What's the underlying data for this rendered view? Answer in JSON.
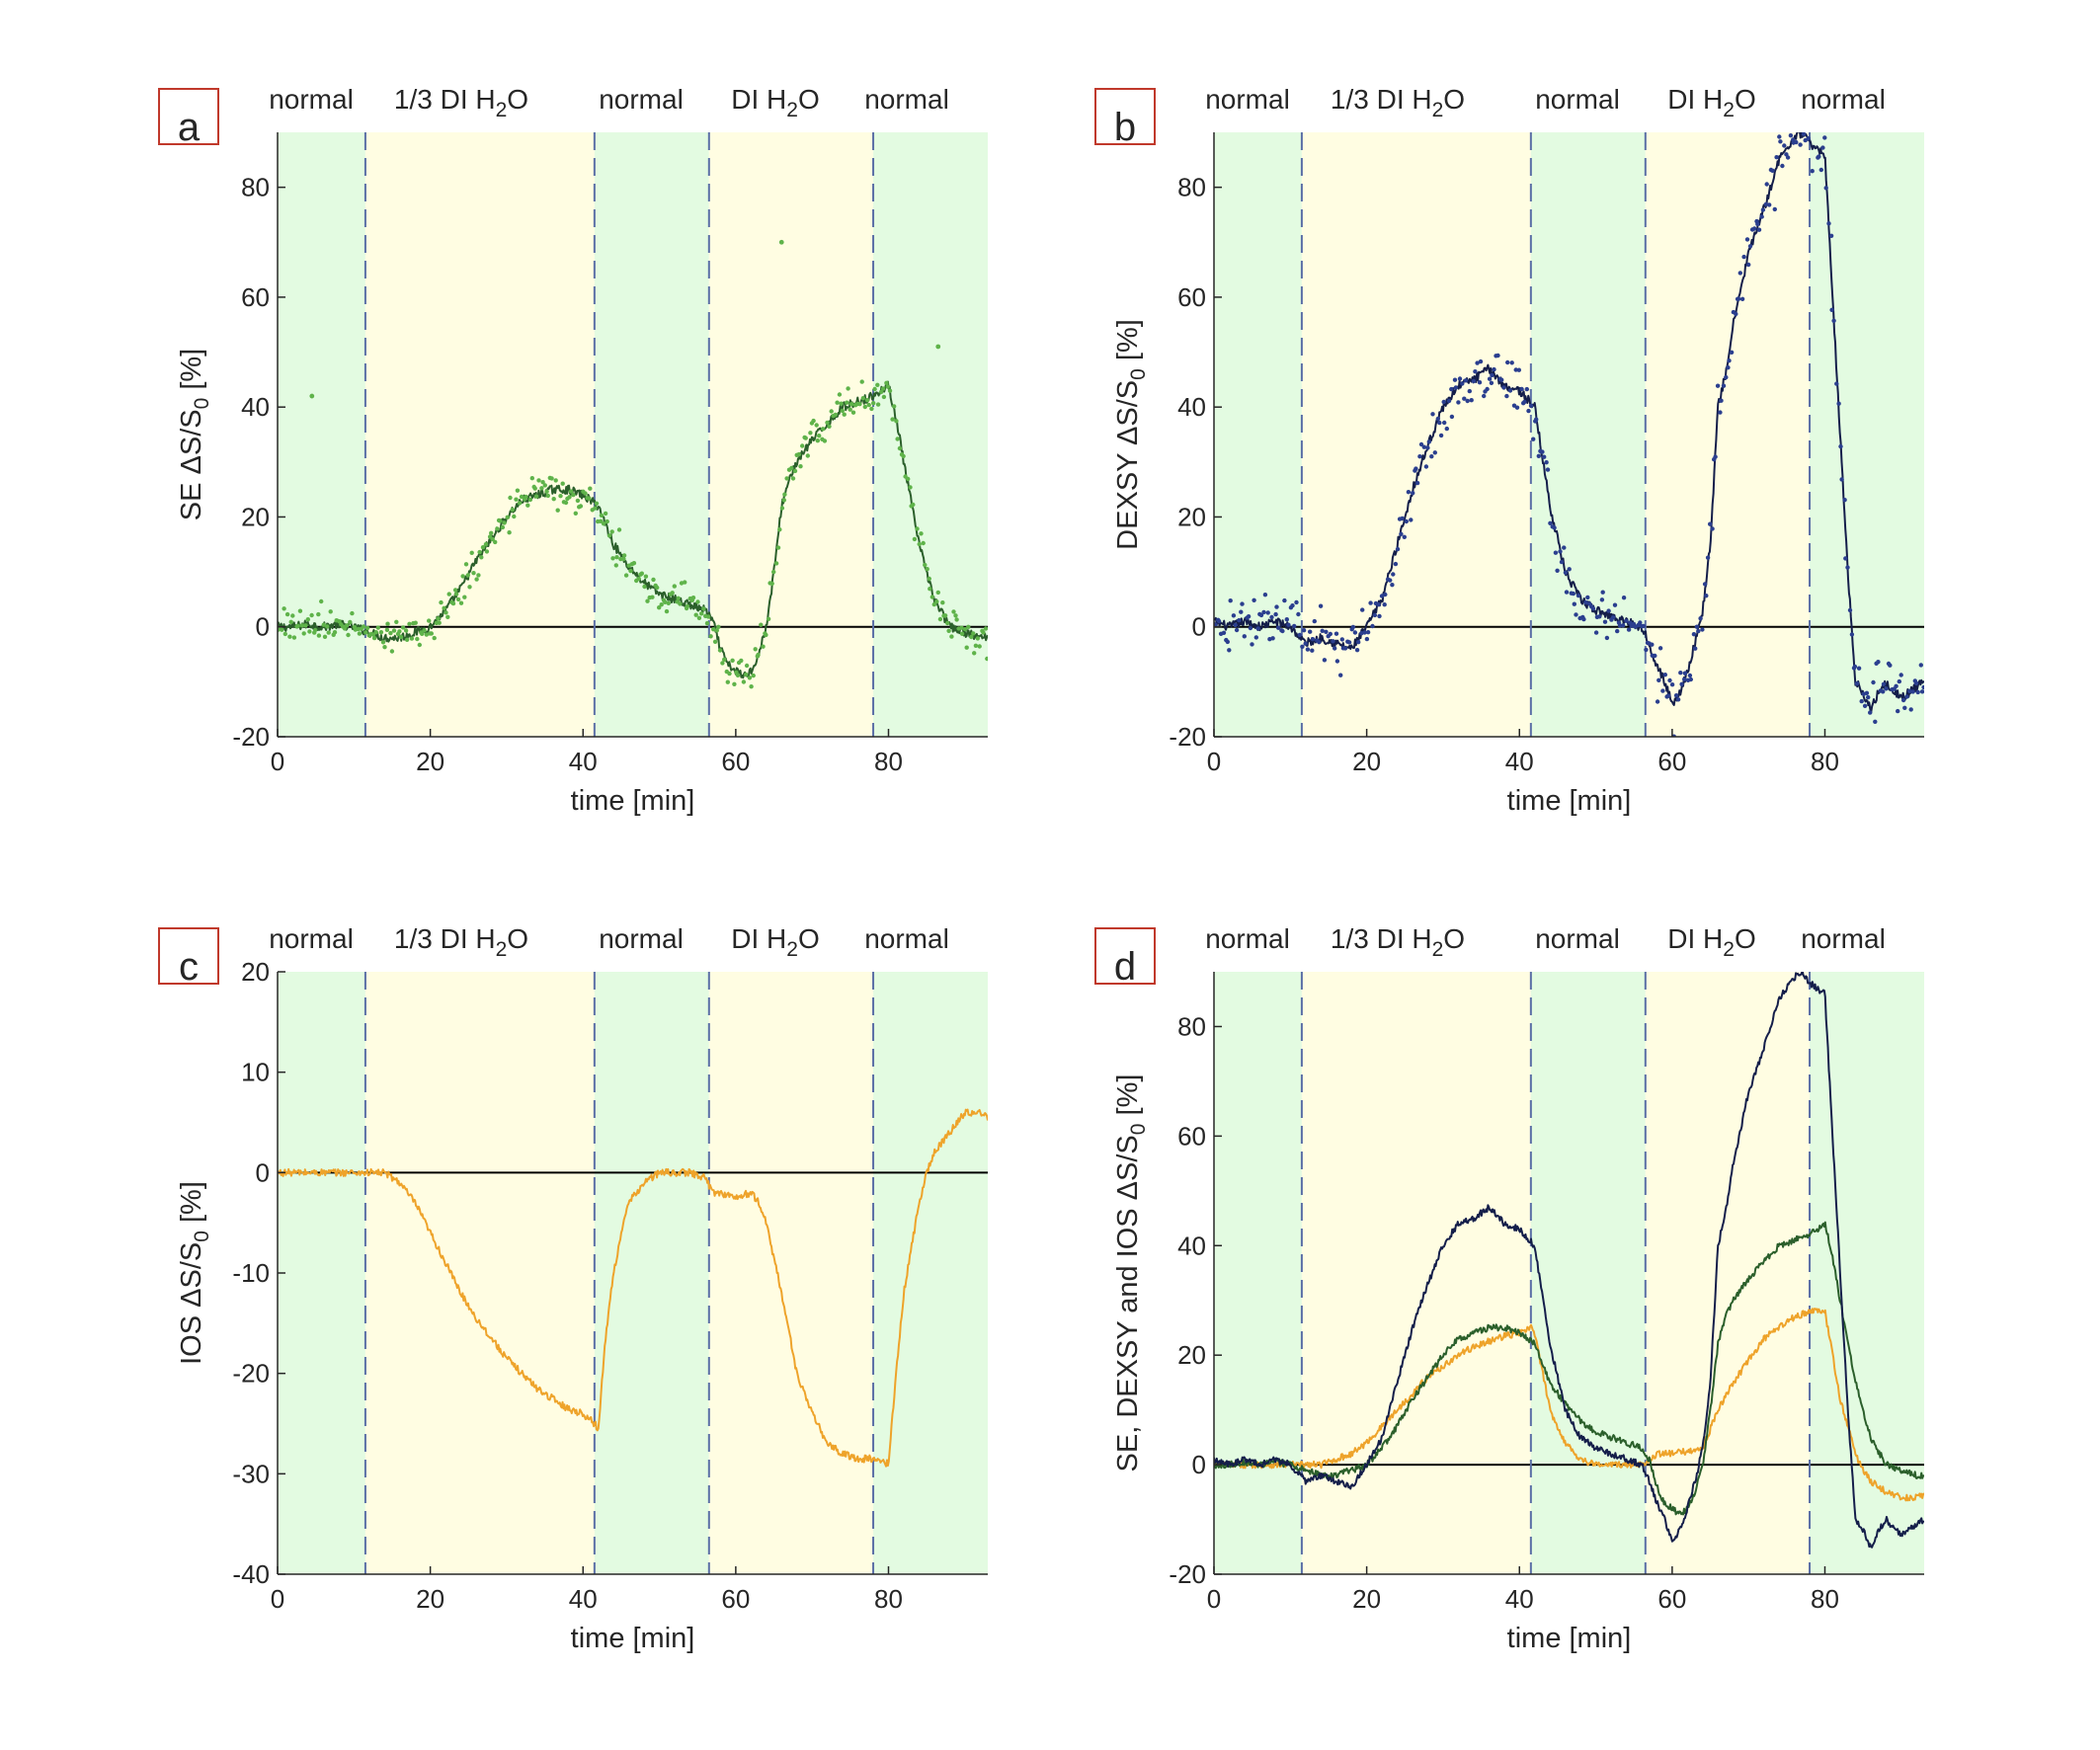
{
  "figure": {
    "x_tick_labels": [
      "0",
      "20",
      "40",
      "60",
      "80"
    ],
    "phase_label_parts": [
      [
        "normal"
      ],
      [
        "1/3 DI H",
        "2",
        "O"
      ],
      [
        "normal"
      ],
      [
        "DI H",
        "2",
        "O"
      ],
      [
        "normal"
      ]
    ]
  },
  "colors": {
    "green_band": "#e3fbe1",
    "yellow_band": "#fffde2",
    "divider": "#5b6fa6",
    "zero_line": "#000000",
    "se_line": "#2b5f2b",
    "se_dots": "#5fb34a",
    "dexsy_line": "#141e4a",
    "dexsy_dots": "#2b3f8f",
    "ios_line": "#eea32a",
    "panel_label_border": "#c0392b"
  },
  "chart_data": [
    {
      "type": "line",
      "panel_label": "a",
      "title": "",
      "xlabel": "time [min]",
      "ylabel_prefix": "SE ΔS/S",
      "ylabel_sub": "0",
      "ylabel_suffix": " [%]",
      "xlim": [
        0,
        93
      ],
      "ylim": [
        -20,
        90
      ],
      "yticks": [
        -20,
        0,
        20,
        40,
        60,
        80
      ],
      "ytick_labels": [
        "-20",
        "0",
        "20",
        "40",
        "60",
        "80"
      ],
      "phases": [
        {
          "label": "normal",
          "start": 0,
          "end": 11.5,
          "band": "green"
        },
        {
          "label": "1/3 DI H2O",
          "start": 11.5,
          "end": 41.5,
          "band": "yellow"
        },
        {
          "label": "normal",
          "start": 41.5,
          "end": 56.5,
          "band": "green"
        },
        {
          "label": "DI H2O",
          "start": 56.5,
          "end": 78,
          "band": "yellow"
        },
        {
          "label": "normal",
          "start": 78,
          "end": 93,
          "band": "green"
        }
      ],
      "series": [
        {
          "name": "SE",
          "color_key": "se_line",
          "dots": true,
          "dot_color_key": "se_dots",
          "noise": 3.0,
          "x": [
            0,
            2,
            4,
            6,
            8,
            10,
            12,
            14,
            16,
            18,
            20,
            22,
            24,
            26,
            28,
            30,
            32,
            34,
            36,
            38,
            40,
            42,
            44,
            46,
            48,
            50,
            52,
            54,
            56,
            57,
            58,
            59,
            60,
            61,
            62,
            63,
            64,
            65,
            66,
            67,
            68,
            70,
            72,
            74,
            76,
            78,
            79,
            80,
            81,
            82,
            84,
            86,
            88,
            90,
            92,
            93
          ],
          "y": [
            0,
            0,
            0.5,
            0,
            0.5,
            0,
            -1,
            -2,
            -2,
            -1,
            0,
            3,
            7,
            12,
            16,
            20,
            23,
            24,
            25,
            25,
            24,
            22,
            15,
            11,
            8,
            6,
            5,
            4,
            3,
            1,
            -4,
            -7,
            -8,
            -9,
            -8,
            -5,
            0,
            10,
            22,
            27,
            30,
            34,
            37,
            40,
            41,
            42,
            43,
            44,
            38,
            30,
            15,
            5,
            0,
            -1,
            -2,
            -2
          ]
        },
        {
          "name": "outliers",
          "color_key": "se_dots",
          "outliers": true,
          "x": [
            4.5,
            66,
            86.5
          ],
          "y": [
            42,
            70,
            51
          ]
        }
      ]
    },
    {
      "type": "line",
      "panel_label": "b",
      "title": "",
      "xlabel": "time [min]",
      "ylabel_prefix": "DEXSY  ΔS/S",
      "ylabel_sub": "0",
      "ylabel_suffix": " [%]",
      "xlim": [
        0,
        93
      ],
      "ylim": [
        -20,
        90
      ],
      "yticks": [
        -20,
        0,
        20,
        40,
        60,
        80
      ],
      "ytick_labels": [
        "-20",
        "0",
        "20",
        "40",
        "60",
        "80"
      ],
      "phases": [
        {
          "label": "normal",
          "start": 0,
          "end": 11.5,
          "band": "green"
        },
        {
          "label": "1/3 DI H2O",
          "start": 11.5,
          "end": 41.5,
          "band": "yellow"
        },
        {
          "label": "normal",
          "start": 41.5,
          "end": 56.5,
          "band": "green"
        },
        {
          "label": "DI H2O",
          "start": 56.5,
          "end": 78,
          "band": "yellow"
        },
        {
          "label": "normal",
          "start": 78,
          "end": 93,
          "band": "green"
        }
      ],
      "series": [
        {
          "name": "DEXSY",
          "color_key": "dexsy_line",
          "dots": true,
          "dot_color_key": "dexsy_dots",
          "noise": 5.0,
          "x": [
            0,
            2,
            4,
            6,
            8,
            10,
            12,
            14,
            16,
            18,
            20,
            22,
            24,
            26,
            28,
            30,
            32,
            34,
            36,
            38,
            40,
            42,
            44,
            46,
            48,
            50,
            52,
            54,
            56,
            57,
            58,
            59,
            60,
            61,
            62,
            63,
            64,
            65,
            66,
            67,
            68,
            70,
            72,
            74,
            76,
            77,
            78,
            79,
            80,
            81,
            82,
            83,
            84,
            85,
            86,
            87,
            88,
            90,
            92,
            93
          ],
          "y": [
            1,
            0,
            1,
            0,
            1,
            0,
            -3,
            -2,
            -3,
            -4,
            0,
            5,
            15,
            25,
            33,
            40,
            44,
            45,
            47,
            44,
            43,
            40,
            22,
            10,
            5,
            3,
            2,
            1,
            0,
            -3,
            -7,
            -10,
            -14,
            -12,
            -8,
            -3,
            3,
            15,
            40,
            46,
            55,
            68,
            76,
            85,
            89,
            90,
            88,
            87,
            86,
            60,
            35,
            10,
            -10,
            -12,
            -15,
            -12,
            -10,
            -13,
            -11,
            -10
          ]
        }
      ]
    },
    {
      "type": "line",
      "panel_label": "c",
      "title": "",
      "xlabel": "time [min]",
      "ylabel_prefix": "IOS  ΔS/S",
      "ylabel_sub": "0",
      "ylabel_suffix": " [%]",
      "xlim": [
        0,
        93
      ],
      "ylim": [
        -40,
        20
      ],
      "yticks": [
        -40,
        -30,
        -20,
        -10,
        0,
        10,
        20
      ],
      "ytick_labels": [
        "-40",
        "-30",
        "-20",
        "-10",
        "0",
        "10",
        "20"
      ],
      "phases": [
        {
          "label": "normal",
          "start": 0,
          "end": 11.5,
          "band": "green"
        },
        {
          "label": "1/3 DI H2O",
          "start": 11.5,
          "end": 41.5,
          "band": "yellow"
        },
        {
          "label": "normal",
          "start": 41.5,
          "end": 56.5,
          "band": "green"
        },
        {
          "label": "DI H2O",
          "start": 56.5,
          "end": 78,
          "band": "yellow"
        },
        {
          "label": "normal",
          "start": 78,
          "end": 93,
          "band": "green"
        }
      ],
      "series": [
        {
          "name": "IOS",
          "color_key": "ios_line",
          "dots": false,
          "jitter": 0.35,
          "x": [
            0,
            5,
            10,
            14,
            16,
            18,
            20,
            22,
            24,
            26,
            28,
            30,
            32,
            34,
            36,
            38,
            40,
            41.5,
            42,
            43,
            44,
            45,
            46,
            48,
            50,
            52,
            54,
            56,
            57,
            58,
            60,
            62,
            63,
            64,
            66,
            68,
            70,
            72,
            74,
            76,
            78,
            80,
            81,
            82,
            84,
            85,
            86,
            88,
            90,
            92,
            93
          ],
          "y": [
            0,
            0,
            0,
            0,
            -1,
            -3,
            -6,
            -9,
            -12,
            -14.5,
            -16.5,
            -18.5,
            -20,
            -21.5,
            -22.5,
            -23.5,
            -24,
            -25,
            -25.5,
            -16,
            -10,
            -6,
            -3,
            -1,
            0,
            0,
            0,
            -0.5,
            -2,
            -2,
            -2.5,
            -2,
            -3,
            -5,
            -12,
            -20,
            -24,
            -27,
            -28,
            -28.5,
            -28.5,
            -29,
            -20,
            -12,
            -3,
            0,
            2,
            4,
            6,
            6,
            5.5
          ]
        }
      ]
    },
    {
      "type": "line",
      "panel_label": "d",
      "title": "",
      "xlabel": "time [min]",
      "ylabel_prefix": "SE, DEXSY and IOS  ΔS/S",
      "ylabel_sub": "0",
      "ylabel_suffix": " [%]",
      "xlim": [
        0,
        93
      ],
      "ylim": [
        -20,
        90
      ],
      "yticks": [
        -20,
        0,
        20,
        40,
        60,
        80
      ],
      "ytick_labels": [
        "-20",
        "0",
        "20",
        "40",
        "60",
        "80"
      ],
      "phases": [
        {
          "label": "normal",
          "start": 0,
          "end": 11.5,
          "band": "green"
        },
        {
          "label": "1/3 DI H2O",
          "start": 11.5,
          "end": 41.5,
          "band": "yellow"
        },
        {
          "label": "normal",
          "start": 41.5,
          "end": 56.5,
          "band": "green"
        },
        {
          "label": "DI H2O",
          "start": 56.5,
          "end": 78,
          "band": "yellow"
        },
        {
          "label": "normal",
          "start": 78,
          "end": 93,
          "band": "green"
        }
      ],
      "series": [
        {
          "name": "IOS",
          "color_key": "ios_line",
          "dots": false,
          "jitter": 0.6,
          "x": [
            0,
            5,
            10,
            14,
            16,
            18,
            20,
            22,
            24,
            26,
            28,
            30,
            32,
            34,
            36,
            38,
            40,
            41.5,
            42,
            44,
            46,
            48,
            50,
            52,
            54,
            56,
            57,
            58,
            60,
            62,
            64,
            66,
            68,
            70,
            72,
            74,
            76,
            78,
            79,
            80,
            81,
            82,
            84,
            85,
            86,
            88,
            90,
            92,
            93
          ],
          "y": [
            0,
            0,
            0,
            0,
            1,
            2,
            4,
            7,
            10,
            13,
            16,
            18,
            20,
            21.5,
            22.5,
            23.5,
            24,
            25,
            24,
            10,
            4,
            1,
            0,
            0,
            0,
            0,
            1,
            2,
            2,
            2.5,
            3,
            10,
            15,
            19,
            23,
            25,
            27,
            28,
            28,
            28,
            20,
            12,
            2,
            -1,
            -3,
            -5,
            -6,
            -6,
            -5.5
          ]
        },
        {
          "name": "SE",
          "color_key": "se_line",
          "dots": false,
          "jitter": 0.6,
          "x": [
            0,
            2,
            4,
            6,
            8,
            10,
            12,
            14,
            16,
            18,
            20,
            22,
            24,
            26,
            28,
            30,
            32,
            34,
            36,
            38,
            40,
            42,
            44,
            46,
            48,
            50,
            52,
            54,
            56,
            57,
            58,
            59,
            60,
            61,
            62,
            63,
            64,
            65,
            66,
            67,
            68,
            70,
            72,
            74,
            76,
            78,
            79,
            80,
            81,
            82,
            84,
            86,
            88,
            90,
            92,
            93
          ],
          "y": [
            0,
            0,
            0.5,
            0,
            0.5,
            0,
            -1,
            -2,
            -2,
            -1,
            0,
            3,
            7,
            12,
            16,
            20,
            23,
            24,
            25,
            25,
            24,
            22,
            15,
            11,
            8,
            6,
            5,
            4,
            3,
            1,
            -4,
            -7,
            -8,
            -9,
            -8,
            -5,
            0,
            10,
            22,
            27,
            30,
            34,
            37,
            40,
            41,
            42,
            43,
            44,
            38,
            30,
            15,
            5,
            0,
            -1,
            -2,
            -2
          ]
        },
        {
          "name": "DEXSY",
          "color_key": "dexsy_line",
          "dots": false,
          "jitter": 0.6,
          "x": [
            0,
            2,
            4,
            6,
            8,
            10,
            12,
            14,
            16,
            18,
            20,
            22,
            24,
            26,
            28,
            30,
            32,
            34,
            36,
            38,
            40,
            42,
            44,
            46,
            48,
            50,
            52,
            54,
            56,
            57,
            58,
            59,
            60,
            61,
            62,
            63,
            64,
            65,
            66,
            67,
            68,
            70,
            72,
            74,
            76,
            77,
            78,
            79,
            80,
            81,
            82,
            83,
            84,
            85,
            86,
            87,
            88,
            90,
            92,
            93
          ],
          "y": [
            1,
            0,
            1,
            0,
            1,
            0,
            -3,
            -2,
            -3,
            -4,
            0,
            5,
            15,
            25,
            33,
            40,
            44,
            45,
            47,
            44,
            43,
            40,
            22,
            10,
            5,
            3,
            2,
            1,
            0,
            -3,
            -7,
            -10,
            -14,
            -12,
            -8,
            -3,
            3,
            15,
            40,
            46,
            55,
            68,
            76,
            85,
            89,
            90,
            88,
            87,
            86,
            60,
            35,
            10,
            -10,
            -12,
            -15,
            -12,
            -10,
            -13,
            -11,
            -10
          ]
        }
      ]
    }
  ]
}
